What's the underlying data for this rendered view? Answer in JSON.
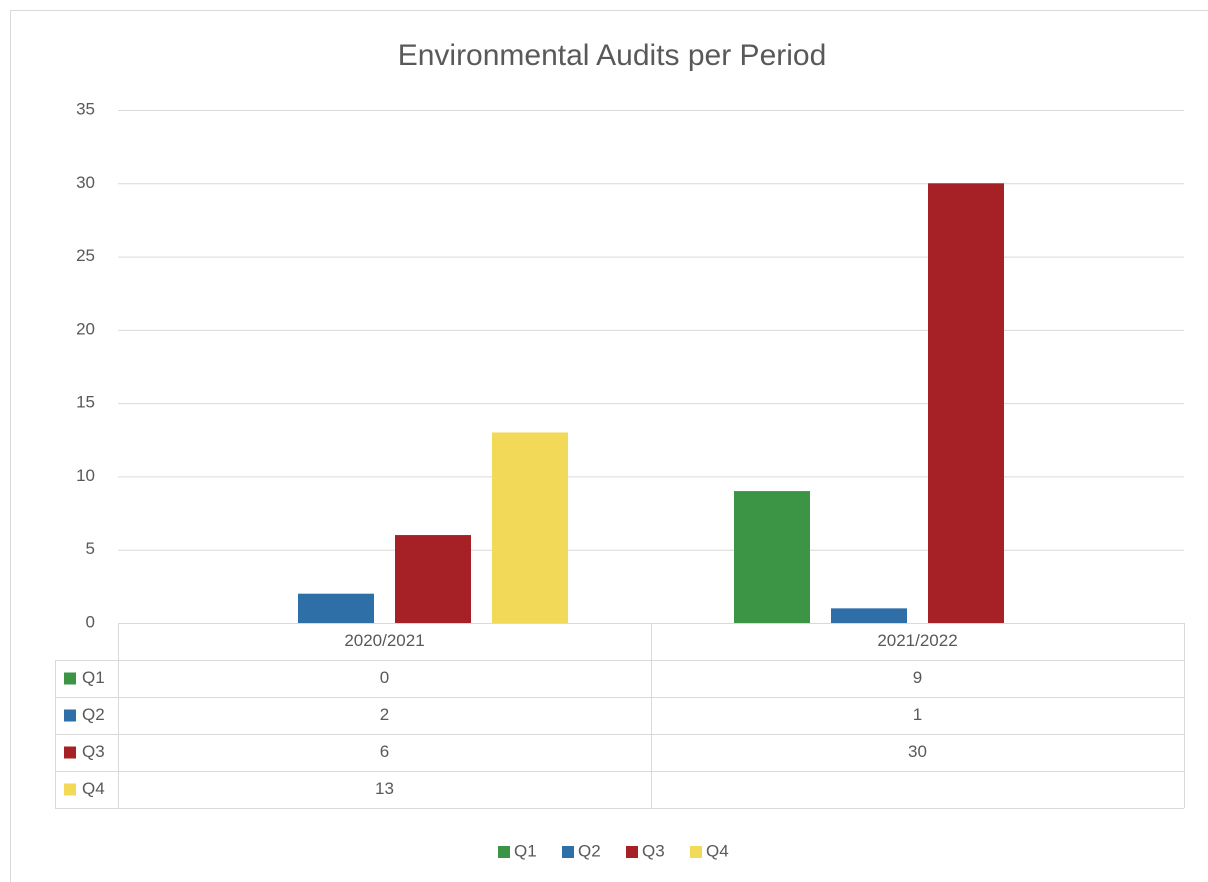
{
  "chart_data": {
    "type": "bar",
    "title": "Environmental Audits per Period",
    "categories": [
      "2020/2021",
      "2021/2022"
    ],
    "series": [
      {
        "name": "Q1",
        "color": "#3c9445",
        "values": [
          0,
          9
        ]
      },
      {
        "name": "Q2",
        "color": "#2e6fa8",
        "values": [
          2,
          1
        ]
      },
      {
        "name": "Q3",
        "color": "#a52126",
        "values": [
          6,
          30
        ]
      },
      {
        "name": "Q4",
        "color": "#f2d957",
        "values": [
          13,
          null
        ]
      }
    ],
    "ylim": [
      0,
      35
    ],
    "yticks": [
      0,
      5,
      10,
      15,
      20,
      25,
      30,
      35
    ],
    "grid": true,
    "data_table": true,
    "legend": "bottom"
  }
}
